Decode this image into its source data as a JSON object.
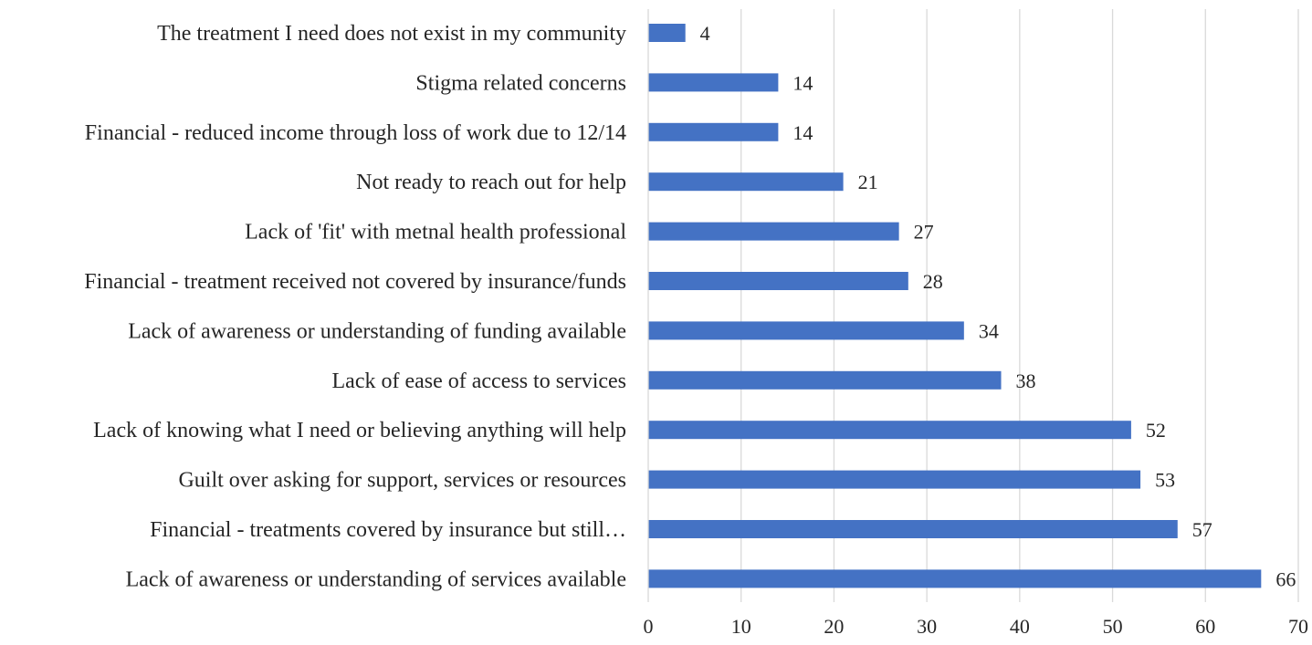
{
  "chart_data": {
    "type": "bar",
    "orientation": "horizontal",
    "categories": [
      "The treatment I need does not exist in my community",
      "Stigma related concerns",
      "Financial - reduced income through loss of work due to 12/14",
      "Not ready to reach out for help",
      "Lack of 'fit' with metnal health professional",
      "Financial - treatment received not covered by insurance/funds",
      "Lack of awareness or understanding of funding available",
      "Lack of ease of access to services",
      "Lack of knowing what I need or believing anything will help",
      "Guilt over asking for support, services or resources",
      "Financial - treatments covered by insurance but still…",
      "Lack of awareness or understanding of services available"
    ],
    "values": [
      4,
      14,
      14,
      21,
      27,
      28,
      34,
      38,
      52,
      53,
      57,
      66
    ],
    "xlim": [
      0,
      70
    ],
    "xticks": [
      0,
      10,
      20,
      30,
      40,
      50,
      60,
      70
    ],
    "grid": true,
    "legend": "none",
    "bar_color": "#4472c4",
    "grid_color": "#d9d9d9",
    "title": "",
    "xlabel": "",
    "ylabel": ""
  }
}
